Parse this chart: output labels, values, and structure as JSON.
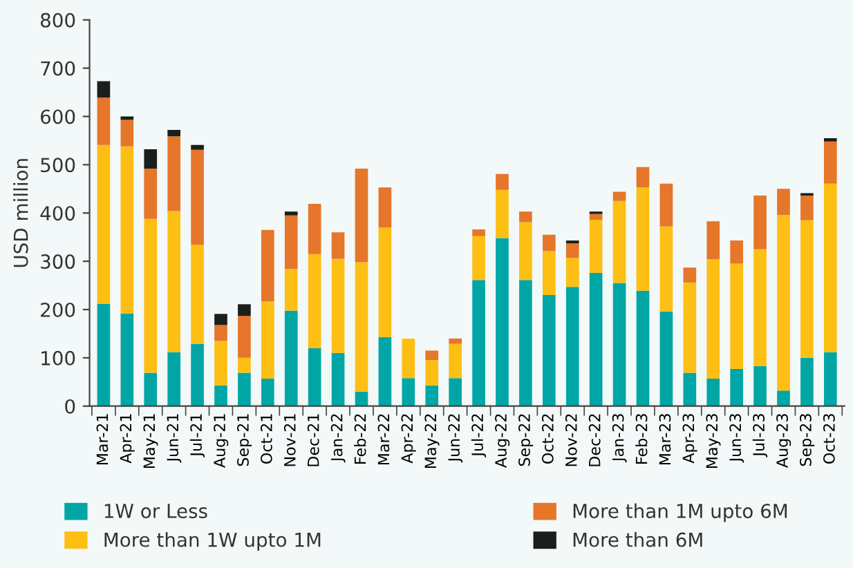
{
  "chart_data": {
    "type": "bar",
    "stacked": true,
    "ylabel": "USD million",
    "categories": [
      "Mar-21",
      "Apr-21",
      "May-21",
      "Jun-21",
      "Jul-21",
      "Aug-21",
      "Sep-21",
      "Oct-21",
      "Nov-21",
      "Dec-21",
      "Jan-22",
      "Feb-22",
      "Mar-22",
      "Apr-22",
      "May-22",
      "Jun-22",
      "Jul-22",
      "Aug-22",
      "Sep-22",
      "Oct-22",
      "Nov-22",
      "Dec-22",
      "Jan-23",
      "Feb-23",
      "Mar-23",
      "Apr-23",
      "May-23",
      "Jun-23",
      "Jul-23",
      "Aug-23",
      "Sep-23",
      "Oct-23"
    ],
    "series": [
      {
        "name": "1W or Less",
        "color": "#00a6a6",
        "values": [
          212,
          192,
          69,
          112,
          129,
          43,
          69,
          57,
          198,
          120,
          110,
          30,
          143,
          58,
          43,
          58,
          261,
          348,
          261,
          230,
          247,
          276,
          255,
          239,
          196,
          69,
          57,
          77,
          83,
          32,
          100,
          112
        ]
      },
      {
        "name": "More than 1W upto 1M",
        "color": "#fdbf13",
        "values": [
          329,
          346,
          319,
          292,
          205,
          92,
          31,
          160,
          86,
          195,
          195,
          268,
          227,
          82,
          52,
          71,
          91,
          100,
          120,
          91,
          60,
          110,
          170,
          214,
          176,
          187,
          247,
          218,
          242,
          364,
          285,
          349
        ]
      },
      {
        "name": "More than 1M upto 6M",
        "color": "#e5762a",
        "values": [
          98,
          55,
          104,
          155,
          197,
          33,
          87,
          148,
          111,
          104,
          55,
          194,
          83,
          0,
          20,
          11,
          14,
          33,
          22,
          34,
          30,
          12,
          19,
          42,
          89,
          31,
          79,
          48,
          111,
          54,
          51,
          87
        ]
      },
      {
        "name": "More than 6M",
        "color": "#1a1f1c",
        "values": [
          34,
          7,
          40,
          13,
          10,
          23,
          24,
          0,
          8,
          0,
          0,
          0,
          0,
          0,
          0,
          0,
          0,
          0,
          0,
          0,
          6,
          5,
          0,
          0,
          0,
          0,
          0,
          0,
          0,
          0,
          5,
          7
        ]
      }
    ],
    "ylim": [
      0,
      800
    ],
    "yticks": [
      0,
      100,
      200,
      300,
      400,
      500,
      600,
      700,
      800
    ],
    "grid": false,
    "legend": "bottom"
  }
}
